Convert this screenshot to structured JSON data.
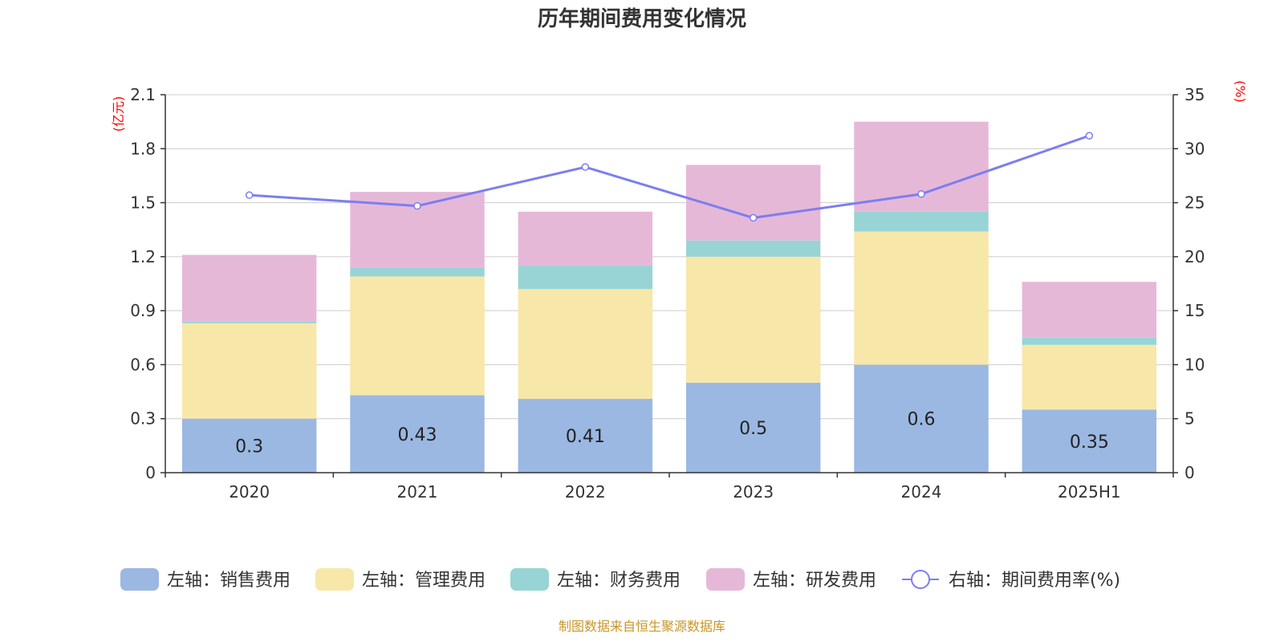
{
  "title": "历年期间费用变化情况",
  "footer": "制图数据来自恒生聚源数据库",
  "chart_data": {
    "type": "bar",
    "stacked": true,
    "categories": [
      "2020",
      "2021",
      "2022",
      "2023",
      "2024",
      "2025H1"
    ],
    "left_axis": {
      "unit_label": "(亿元)",
      "ylim": [
        0,
        2.1
      ],
      "ticks": [
        "0",
        "0.3",
        "0.6",
        "0.9",
        "1.2",
        "1.5",
        "1.8",
        "2.1"
      ],
      "tick_values": [
        0,
        0.3,
        0.6,
        0.9,
        1.2,
        1.5,
        1.8,
        2.1
      ]
    },
    "right_axis": {
      "unit_label": "(%)",
      "ylim": [
        0,
        35
      ],
      "ticks": [
        "0",
        "5",
        "10",
        "15",
        "20",
        "25",
        "30",
        "35"
      ],
      "tick_values": [
        0,
        5,
        10,
        15,
        20,
        25,
        30,
        35
      ]
    },
    "series": [
      {
        "name": "左轴：销售费用",
        "type": "bar",
        "axis": "left",
        "color": "#9bb8e2",
        "values": [
          0.3,
          0.43,
          0.41,
          0.5,
          0.6,
          0.35
        ],
        "labels": [
          "0.3",
          "0.43",
          "0.41",
          "0.5",
          "0.6",
          "0.35"
        ]
      },
      {
        "name": "左轴：管理费用",
        "type": "bar",
        "axis": "left",
        "color": "#f7e7a8",
        "values": [
          0.53,
          0.66,
          0.61,
          0.7,
          0.74,
          0.36
        ]
      },
      {
        "name": "左轴：财务费用",
        "type": "bar",
        "axis": "left",
        "color": "#98d4d5",
        "values": [
          0.01,
          0.05,
          0.13,
          0.09,
          0.11,
          0.04
        ]
      },
      {
        "name": "左轴：研发费用",
        "type": "bar",
        "axis": "left",
        "color": "#e6b8d8",
        "values": [
          0.37,
          0.42,
          0.3,
          0.42,
          0.5,
          0.31
        ]
      },
      {
        "name": "右轴：期间费用率(%)",
        "type": "line",
        "axis": "right",
        "color": "#7b7ff0",
        "values": [
          25.7,
          24.7,
          28.3,
          23.6,
          25.8,
          31.2
        ]
      }
    ],
    "grid": true,
    "legend_position": "bottom"
  }
}
